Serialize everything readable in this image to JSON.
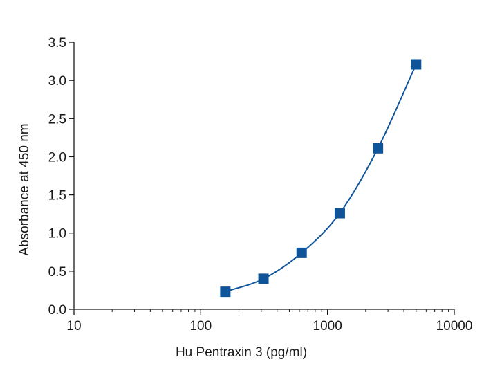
{
  "chart_data": {
    "type": "scatter",
    "title": "",
    "xlabel": "Hu Pentraxin 3 (pg/ml)",
    "ylabel": "Absorbance at 450 nm",
    "xscale": "log",
    "xlim": [
      10,
      10000
    ],
    "ylim": [
      0,
      3.5
    ],
    "x_ticks": [
      10,
      100,
      1000,
      10000
    ],
    "x_tick_labels": [
      "10",
      "100",
      "1000",
      "10000"
    ],
    "y_ticks": [
      0,
      0.5,
      1.0,
      1.5,
      2.0,
      2.5,
      3.0,
      3.5
    ],
    "y_tick_labels": [
      "0.0",
      "0.5",
      "1.0",
      "1.5",
      "2.0",
      "2.5",
      "3.0",
      "3.5"
    ],
    "grid": false,
    "legend": "none",
    "series": [
      {
        "x": [
          156.25,
          312.5,
          625,
          1250,
          2500,
          5000
        ],
        "y": [
          0.23,
          0.4,
          0.74,
          1.26,
          2.11,
          3.21
        ],
        "marker": "square",
        "fit_curve": true
      }
    ],
    "colors": {
      "series": "#0f5499",
      "axis": "#1a1a1a"
    }
  }
}
